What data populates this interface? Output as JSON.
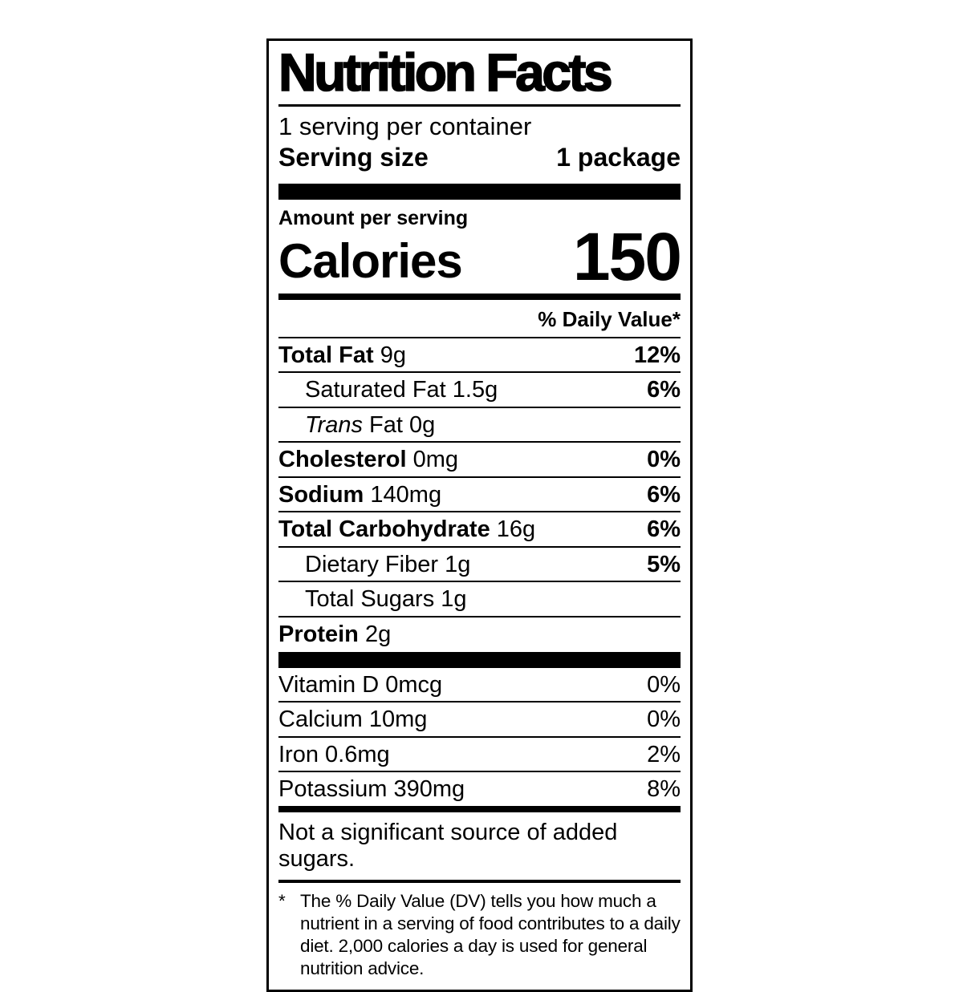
{
  "label": {
    "title": "Nutrition Facts",
    "servings_per_container": "1 serving per container",
    "serving_size_label": "Serving size",
    "serving_size_value": "1 package",
    "amount_per_serving": "Amount per serving",
    "calories_label": "Calories",
    "calories_value": "150",
    "daily_value_header": "% Daily Value*",
    "nutrients": [
      {
        "name": "Total Fat",
        "amount": "9g",
        "dv": "12%"
      },
      {
        "name": "Saturated Fat",
        "amount": "1.5g",
        "dv": "6%"
      },
      {
        "name": "Trans",
        "amount": "Fat 0g",
        "dv": ""
      },
      {
        "name": "Cholesterol",
        "amount": "0mg",
        "dv": "0%"
      },
      {
        "name": "Sodium",
        "amount": "140mg",
        "dv": "6%"
      },
      {
        "name": "Total Carbohydrate",
        "amount": "16g",
        "dv": "6%"
      },
      {
        "name": "Dietary Fiber",
        "amount": "1g",
        "dv": "5%"
      },
      {
        "name": "Total Sugars",
        "amount": "1g",
        "dv": ""
      },
      {
        "name": "Protein",
        "amount": "2g",
        "dv": ""
      }
    ],
    "micronutrients": [
      {
        "name": "Vitamin D",
        "amount": "0mcg",
        "dv": "0%"
      },
      {
        "name": "Calcium",
        "amount": "10mg",
        "dv": "0%"
      },
      {
        "name": "Iron",
        "amount": "0.6mg",
        "dv": "2%"
      },
      {
        "name": "Potassium",
        "amount": "390mg",
        "dv": "8%"
      }
    ],
    "not_significant": "Not a significant source of added sugars.",
    "footnote_marker": "*",
    "footnote": "The % Daily Value (DV) tells you how much a nutrient in a serving of food contributes to a daily diet. 2,000 calories a day is used for general nutrition advice.",
    "colors": {
      "ink": "#000000",
      "background": "#ffffff"
    }
  }
}
